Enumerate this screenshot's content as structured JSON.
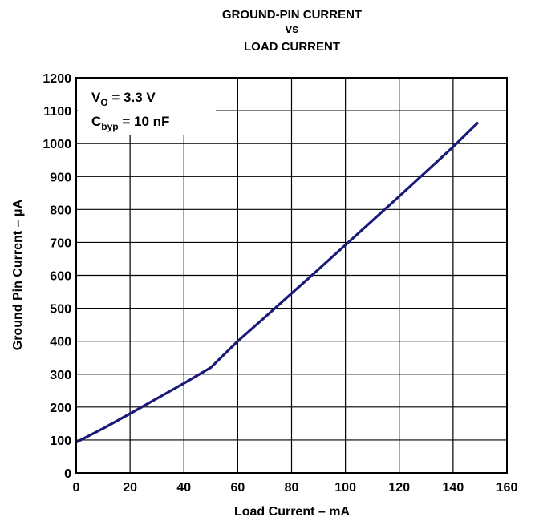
{
  "chart_data": {
    "type": "line",
    "title": [
      "GROUND-PIN CURRENT",
      "vs",
      "LOAD CURRENT"
    ],
    "xlabel": "Load Current – mA",
    "ylabel": "Ground Pin Current – μA",
    "xlim": [
      0,
      160
    ],
    "ylim": [
      0,
      1200
    ],
    "x_ticks": [
      0,
      20,
      40,
      60,
      80,
      100,
      120,
      140,
      160
    ],
    "y_ticks": [
      0,
      100,
      200,
      300,
      400,
      500,
      600,
      700,
      800,
      900,
      1000,
      1100,
      1200
    ],
    "grid": true,
    "series": [
      {
        "color": "#1a1a78",
        "x": [
          0,
          10,
          20,
          30,
          40,
          50,
          60,
          70,
          80,
          90,
          100,
          110,
          120,
          130,
          140,
          149
        ],
        "y": [
          93,
          135,
          180,
          226,
          272,
          320,
          400,
          472,
          545,
          618,
          692,
          766,
          840,
          915,
          990,
          1062
        ]
      }
    ],
    "annotations": [
      {
        "main": "V",
        "sub": "O",
        "rest": " = 3.3 V"
      },
      {
        "main": "C",
        "sub": "byp",
        "rest": " = 10 nF"
      }
    ]
  }
}
